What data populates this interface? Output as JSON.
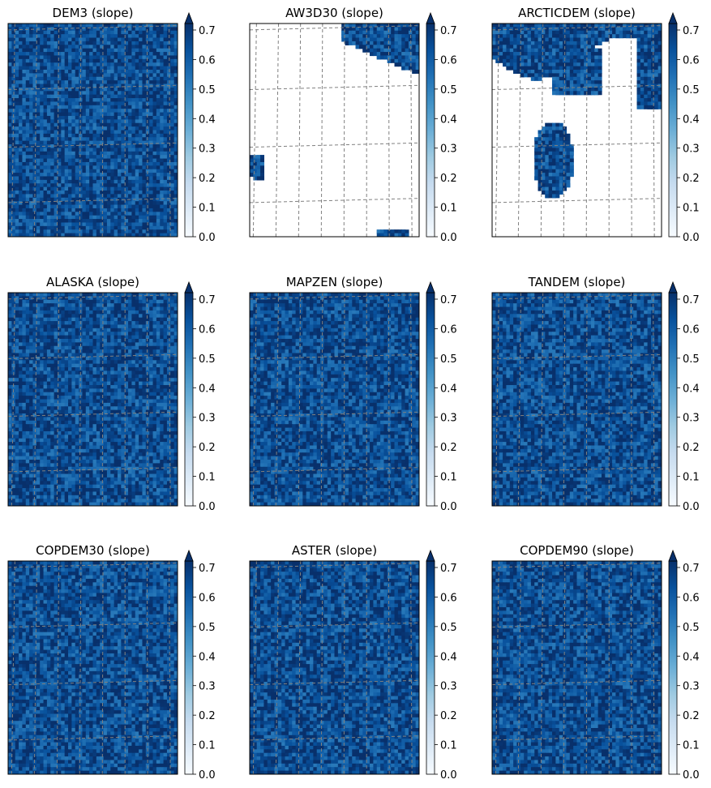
{
  "figure": {
    "colormap": "Blues",
    "grid": "dashed gray graticule",
    "colors": {
      "cmap_low": "#f7fbff",
      "cmap_high": "#08306b",
      "grid": "#808080",
      "nodata": "#ffffff"
    }
  },
  "chart_data": [
    {
      "type": "heatmap",
      "title": "DEM3 (slope)",
      "variable": "slope",
      "colorbar": {
        "range": [
          0.0,
          0.7
        ],
        "extend": "max",
        "ticks": [
          "0.0",
          "0.1",
          "0.2",
          "0.3",
          "0.4",
          "0.5",
          "0.6",
          "0.7"
        ]
      },
      "pattern": "high slope nearly everywhere; low-slope bright band along the northern ridge; faint streaks in the middle",
      "seed": 3,
      "streaks": [
        {
          "cx": 0.62,
          "cy": 0.12,
          "rx": 0.42,
          "ry": 0.04,
          "rot": 30,
          "v": 0.22
        },
        {
          "cx": 0.55,
          "cy": 0.65,
          "rx": 0.22,
          "ry": 0.05,
          "rot": 15,
          "v": 0.45
        },
        {
          "cx": 0.25,
          "cy": 0.4,
          "rx": 0.06,
          "ry": 0.05,
          "rot": 0,
          "v": 0.5
        }
      ],
      "corner_low": {
        "cx": 0.05,
        "cy": 0.04,
        "r": 0.35,
        "v": 0.05
      },
      "nodata": []
    },
    {
      "type": "heatmap",
      "title": "AW3D30 (slope)",
      "variable": "slope",
      "colorbar": {
        "range": [
          0.0,
          0.7
        ],
        "extend": "max",
        "ticks": [
          "0.0",
          "0.1",
          "0.2",
          "0.3",
          "0.4",
          "0.5",
          "0.6",
          "0.7"
        ]
      },
      "pattern": "mostly no-data (white); valid data only along the top-right edge and small patches at the left and bottom edges",
      "seed": 11,
      "streaks": [],
      "corner_low": null,
      "nodata": "most"
    },
    {
      "type": "heatmap",
      "title": "ARCTICDEM (slope)",
      "variable": "slope",
      "colorbar": {
        "range": [
          0.0,
          0.7
        ],
        "extend": "max",
        "ticks": [
          "0.0",
          "0.1",
          "0.2",
          "0.3",
          "0.4",
          "0.5",
          "0.6",
          "0.7"
        ]
      },
      "pattern": "valid data along the northern ridge and an isolated patch in the center; large no-data areas elsewhere",
      "seed": 17,
      "streaks": [],
      "corner_low": null,
      "nodata": "partial"
    },
    {
      "type": "heatmap",
      "title": "ALASKA (slope)",
      "variable": "slope",
      "colorbar": {
        "range": [
          0.0,
          0.7
        ],
        "extend": "max",
        "ticks": [
          "0.0",
          "0.1",
          "0.2",
          "0.3",
          "0.4",
          "0.5",
          "0.6",
          "0.7"
        ]
      },
      "pattern": "high slope nearly everywhere; bright ridge band at the top; diffuse streak in the middle",
      "seed": 23,
      "streaks": [
        {
          "cx": 0.62,
          "cy": 0.12,
          "rx": 0.42,
          "ry": 0.03,
          "rot": 30,
          "v": 0.2
        },
        {
          "cx": 0.52,
          "cy": 0.62,
          "rx": 0.18,
          "ry": 0.05,
          "rot": 20,
          "v": 0.45
        }
      ],
      "corner_low": {
        "cx": 0.05,
        "cy": 0.04,
        "r": 0.3,
        "v": 0.1
      },
      "nodata": []
    },
    {
      "type": "heatmap",
      "title": "MAPZEN (slope)",
      "variable": "slope",
      "colorbar": {
        "range": [
          0.0,
          0.7
        ],
        "extend": "max",
        "ticks": [
          "0.0",
          "0.1",
          "0.2",
          "0.3",
          "0.4",
          "0.5",
          "0.6",
          "0.7"
        ]
      },
      "pattern": "very similar to ALASKA: bright ridge band at the top, diffuse streak in the middle",
      "seed": 29,
      "streaks": [
        {
          "cx": 0.62,
          "cy": 0.12,
          "rx": 0.42,
          "ry": 0.03,
          "rot": 30,
          "v": 0.2
        },
        {
          "cx": 0.52,
          "cy": 0.62,
          "rx": 0.18,
          "ry": 0.05,
          "rot": 20,
          "v": 0.45
        }
      ],
      "corner_low": {
        "cx": 0.05,
        "cy": 0.04,
        "r": 0.3,
        "v": 0.1
      },
      "nodata": []
    },
    {
      "type": "heatmap",
      "title": "TANDEM (slope)",
      "variable": "slope",
      "colorbar": {
        "range": [
          0.0,
          0.7
        ],
        "extend": "max",
        "ticks": [
          "0.0",
          "0.1",
          "0.2",
          "0.3",
          "0.4",
          "0.5",
          "0.6",
          "0.7"
        ]
      },
      "pattern": "many thin low-slope streaks scattered across the panel",
      "seed": 31,
      "streaks": [
        {
          "cx": 0.6,
          "cy": 0.08,
          "rx": 0.3,
          "ry": 0.02,
          "rot": 20,
          "v": 0.3
        },
        {
          "cx": 0.4,
          "cy": 0.3,
          "rx": 0.2,
          "ry": 0.015,
          "rot": 35,
          "v": 0.35
        },
        {
          "cx": 0.3,
          "cy": 0.78,
          "rx": 0.25,
          "ry": 0.015,
          "rot": -10,
          "v": 0.3
        },
        {
          "cx": 0.8,
          "cy": 0.9,
          "rx": 0.05,
          "ry": 0.04,
          "rot": 0,
          "v": 0.3
        }
      ],
      "corner_low": null,
      "nodata": []
    },
    {
      "type": "heatmap",
      "title": "COPDEM30 (slope)",
      "variable": "slope",
      "colorbar": {
        "range": [
          0.0,
          0.7
        ],
        "extend": "max",
        "ticks": [
          "0.0",
          "0.1",
          "0.2",
          "0.3",
          "0.4",
          "0.5",
          "0.6",
          "0.7"
        ]
      },
      "pattern": "bright ridges in the upper half, scattered streaks in the lower half",
      "seed": 37,
      "streaks": [
        {
          "cx": 0.55,
          "cy": 0.12,
          "rx": 0.4,
          "ry": 0.03,
          "rot": 25,
          "v": 0.2
        },
        {
          "cx": 0.7,
          "cy": 0.3,
          "rx": 0.25,
          "ry": 0.025,
          "rot": 40,
          "v": 0.3
        },
        {
          "cx": 0.3,
          "cy": 0.45,
          "rx": 0.15,
          "ry": 0.02,
          "rot": 10,
          "v": 0.35
        }
      ],
      "corner_low": null,
      "nodata": []
    },
    {
      "type": "heatmap",
      "title": "ASTER (slope)",
      "variable": "slope",
      "colorbar": {
        "range": [
          0.0,
          0.7
        ],
        "extend": "max",
        "ticks": [
          "0.0",
          "0.1",
          "0.2",
          "0.3",
          "0.4",
          "0.5",
          "0.6",
          "0.7"
        ]
      },
      "pattern": "noisy: many short bright streaks throughout",
      "seed": 41,
      "streaks": [
        {
          "cx": 0.5,
          "cy": 0.15,
          "rx": 0.4,
          "ry": 0.03,
          "rot": 25,
          "v": 0.25
        },
        {
          "cx": 0.35,
          "cy": 0.55,
          "rx": 0.25,
          "ry": 0.02,
          "rot": 30,
          "v": 0.3
        }
      ],
      "corner_low": null,
      "nodata": []
    },
    {
      "type": "heatmap",
      "title": "COPDEM90 (slope)",
      "variable": "slope",
      "colorbar": {
        "range": [
          0.0,
          0.7
        ],
        "extend": "max",
        "ticks": [
          "0.0",
          "0.1",
          "0.2",
          "0.3",
          "0.4",
          "0.5",
          "0.6",
          "0.7"
        ]
      },
      "pattern": "smoothed: bright ridge band at the top, soft blurry streaks below",
      "seed": 43,
      "streaks": [
        {
          "cx": 0.55,
          "cy": 0.12,
          "rx": 0.42,
          "ry": 0.04,
          "rot": 25,
          "v": 0.2
        },
        {
          "cx": 0.55,
          "cy": 0.55,
          "rx": 0.2,
          "ry": 0.05,
          "rot": 20,
          "v": 0.45
        }
      ],
      "corner_low": {
        "cx": 0.05,
        "cy": 0.04,
        "r": 0.3,
        "v": 0.1
      },
      "nodata": []
    }
  ]
}
